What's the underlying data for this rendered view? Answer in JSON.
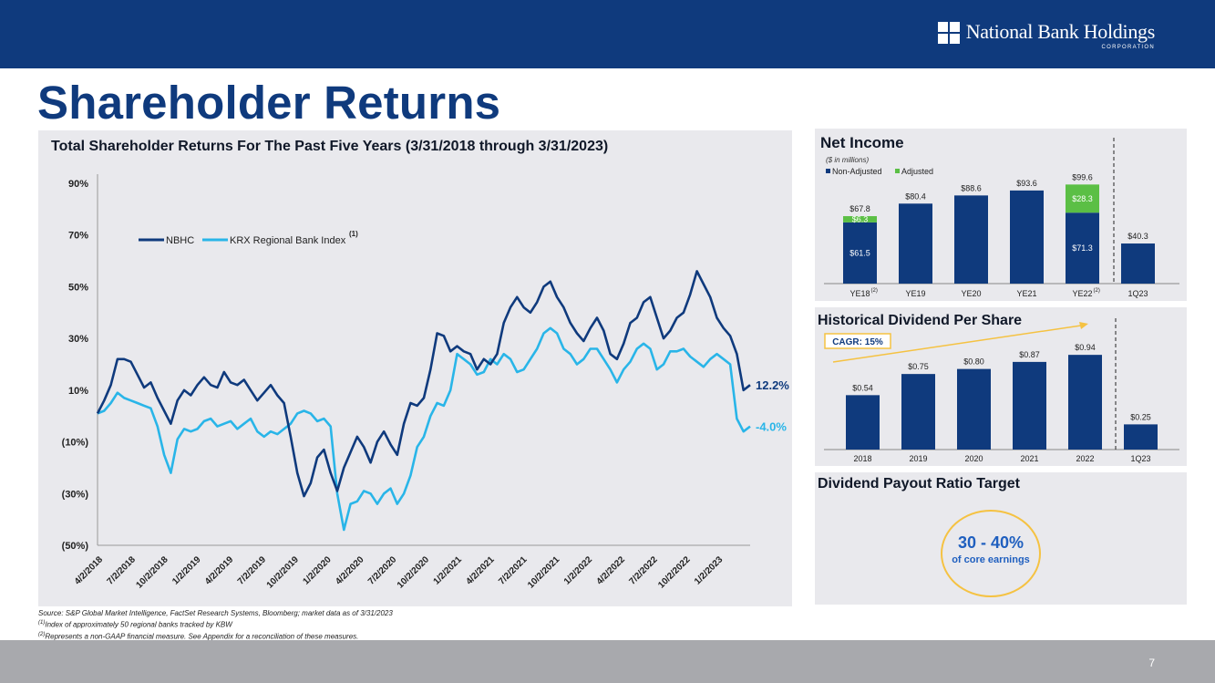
{
  "header": {
    "company_name": "National Bank Holdings",
    "company_sub": "CORPORATION",
    "title": "Shareholder Returns"
  },
  "colors": {
    "navy": "#0f3a7d",
    "nbhc": "#0f3a7d",
    "krx": "#29b5e8",
    "adjusted": "#5bbf45",
    "cagr_arrow": "#f5c242"
  },
  "chart_data": [
    {
      "id": "tsr",
      "type": "line",
      "title": "Total Shareholder Returns For The Past Five Years (3/31/2018 through 3/31/2023)",
      "ylim": [
        -50,
        90
      ],
      "yticks": [
        {
          "value": 90,
          "label": "90%"
        },
        {
          "value": 70,
          "label": "70%"
        },
        {
          "value": 50,
          "label": "50%"
        },
        {
          "value": 30,
          "label": "30%"
        },
        {
          "value": 10,
          "label": "10%"
        },
        {
          "value": -10,
          "label": "(10%)"
        },
        {
          "value": -30,
          "label": "(30%)"
        },
        {
          "value": -50,
          "label": "(50%)"
        }
      ],
      "xticks": [
        "4/2/2018",
        "7/2/2018",
        "10/2/2018",
        "1/2/2019",
        "4/2/2019",
        "7/2/2019",
        "10/2/2019",
        "1/2/2020",
        "4/2/2020",
        "7/2/2020",
        "10/2/2020",
        "1/2/2021",
        "4/2/2021",
        "7/2/2021",
        "10/2/2021",
        "1/2/2022",
        "4/2/2022",
        "7/2/2022",
        "10/2/2022",
        "1/2/2023"
      ],
      "legend_note": "(1)",
      "series": [
        {
          "name": "NBHC",
          "end_label": "12.2%",
          "values": [
            1,
            6,
            12,
            22,
            22,
            21,
            16,
            11,
            13,
            7,
            2,
            -3,
            6,
            10,
            8,
            12,
            15,
            12,
            11,
            17,
            13,
            12,
            14,
            10,
            6,
            9,
            12,
            8,
            5,
            -8,
            -22,
            -31,
            -26,
            -16,
            -13,
            -22,
            -29,
            -20,
            -14,
            -8,
            -12,
            -18,
            -10,
            -6,
            -11,
            -15,
            -3,
            5,
            4,
            7,
            18,
            32,
            31,
            25,
            27,
            25,
            24,
            18,
            22,
            20,
            24,
            36,
            42,
            46,
            42,
            40,
            44,
            50,
            52,
            46,
            42,
            36,
            32,
            29,
            34,
            38,
            33,
            24,
            22,
            28,
            36,
            38,
            44,
            46,
            38,
            30,
            33,
            38,
            40,
            47,
            56,
            51,
            46,
            38,
            34,
            31,
            24,
            10,
            12
          ]
        },
        {
          "name": "KRX Regional Bank Index",
          "end_label": "-4.0%",
          "values": [
            1,
            2,
            5,
            9,
            7,
            6,
            5,
            4,
            3,
            -4,
            -15,
            -22,
            -9,
            -5,
            -6,
            -5,
            -2,
            -1,
            -4,
            -3,
            -2,
            -5,
            -3,
            -1,
            -6,
            -8,
            -6,
            -7,
            -5,
            -3,
            1,
            2,
            1,
            -2,
            -1,
            -4,
            -30,
            -44,
            -34,
            -33,
            -29,
            -30,
            -34,
            -30,
            -28,
            -34,
            -30,
            -23,
            -12,
            -8,
            0,
            5,
            4,
            10,
            24,
            22,
            20,
            16,
            17,
            22,
            20,
            24,
            22,
            17,
            18,
            22,
            26,
            32,
            34,
            32,
            26,
            24,
            20,
            22,
            26,
            26,
            22,
            18,
            13,
            18,
            21,
            26,
            28,
            26,
            18,
            20,
            25,
            25,
            26,
            23,
            21,
            19,
            22,
            24,
            22,
            20,
            -1,
            -6,
            -4
          ]
        }
      ]
    },
    {
      "id": "net_income",
      "type": "bar",
      "title": "Net Income",
      "subtitle": "($ in millions)",
      "legend": [
        "Non-Adjusted",
        "Adjusted"
      ],
      "categories": [
        "YE18",
        "YE19",
        "YE20",
        "YE21",
        "YE22",
        "1Q23"
      ],
      "category_notes": [
        "(2)",
        "",
        "",
        "",
        "(2)",
        ""
      ],
      "series": [
        {
          "name": "Non-Adjusted",
          "values": [
            61.5,
            80.4,
            88.6,
            93.6,
            71.3,
            40.3
          ],
          "labels": [
            "$61.5",
            "",
            "",
            "",
            "$71.3",
            ""
          ]
        },
        {
          "name": "Adjusted",
          "values": [
            6.3,
            0,
            0,
            0,
            28.3,
            0
          ],
          "labels": [
            "$6.3",
            "",
            "",
            "",
            "$28.3",
            ""
          ]
        }
      ],
      "totals": [
        "$67.8",
        "$80.4",
        "$88.6",
        "$93.6",
        "$99.6",
        "$40.3"
      ],
      "ylim": [
        0,
        110
      ]
    },
    {
      "id": "dividend",
      "type": "bar",
      "title": "Historical Dividend Per Share",
      "annotation": "CAGR: 15%",
      "categories": [
        "2018",
        "2019",
        "2020",
        "2021",
        "2022",
        "1Q23"
      ],
      "values": [
        0.54,
        0.75,
        0.8,
        0.87,
        0.94,
        0.25
      ],
      "labels": [
        "$0.54",
        "$0.75",
        "$0.80",
        "$0.87",
        "$0.94",
        "$0.25"
      ],
      "ylim": [
        0,
        1.05
      ]
    }
  ],
  "payout": {
    "title": "Dividend Payout Ratio Target",
    "value": "30 - 40%",
    "label": "of core earnings"
  },
  "footnotes": [
    "Source: S&P Global Market Intelligence, FactSet Research Systems, Bloomberg; market data as of 3/31/2023",
    "Index of approximately 50 regional banks tracked by KBW",
    "Represents a non-GAAP financial measure.  See Appendix for a reconciliation of these measures."
  ],
  "footnote_marks": [
    "(1)",
    "(2)"
  ],
  "page_number": "7"
}
